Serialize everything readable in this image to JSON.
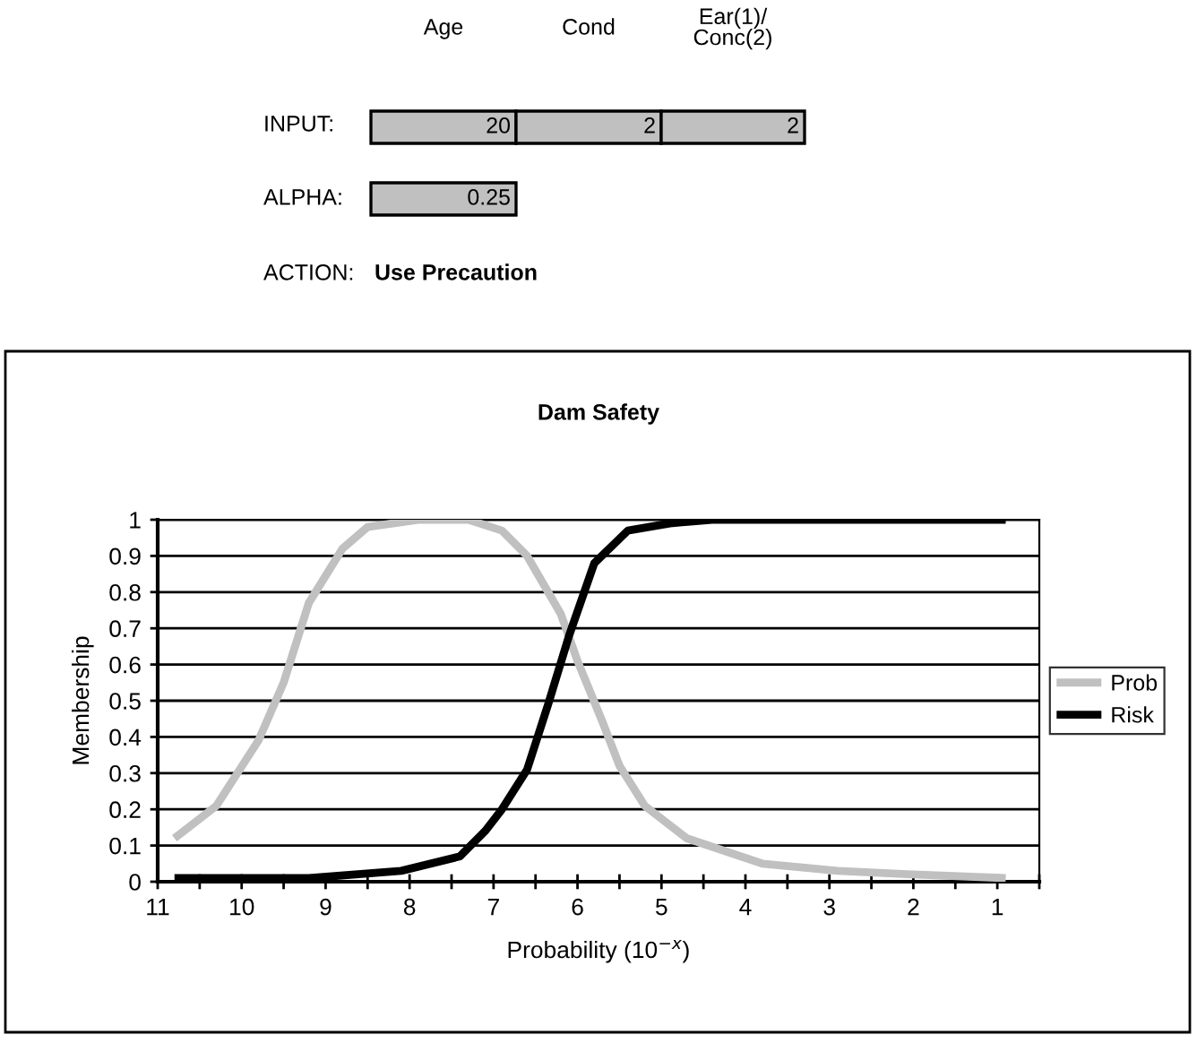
{
  "chart_data": [
    {
      "type": "other",
      "annotations": [
        "Age",
        "Cond",
        "Ear(1)/\nConc(2)",
        "INPUT:",
        "20",
        "2",
        "2",
        "ALPHA:",
        "0.25",
        "ACTION:",
        "Use Precaution"
      ]
    },
    {
      "type": "line",
      "title": "Dam Safety",
      "xlabel": "Probability (10$^{−x}$)",
      "ylabel": "Membership",
      "xlim": [
        11,
        0.5
      ],
      "xticks": [
        11,
        {
          "value": 10.5,
          "label": null
        },
        10,
        {
          "value": 9.5,
          "label": null
        },
        9,
        {
          "value": 8.5,
          "label": null
        },
        8,
        {
          "value": 7.5,
          "label": null
        },
        7,
        {
          "value": 6.5,
          "label": null
        },
        6,
        {
          "value": 5.5,
          "label": null
        },
        5,
        {
          "value": 4.5,
          "label": null
        },
        4,
        {
          "value": 3.5,
          "label": null
        },
        3,
        {
          "value": 2.5,
          "label": null
        },
        2,
        {
          "value": 1.5,
          "label": null
        },
        1,
        {
          "value": 0.5,
          "label": null
        }
      ],
      "ylim": [
        0,
        1
      ],
      "yticks": [
        0,
        0.1,
        0.2,
        0.3,
        0.4,
        0.5,
        0.6,
        0.7,
        0.8,
        0.9,
        1
      ],
      "grid": "y",
      "legend": "right",
      "marker": "none",
      "line_style": "solid",
      "series": [
        {
          "name": "Prob",
          "color": "#c0c0c0",
          "x": [
            10.8,
            10.3,
            9.8,
            9.5,
            9.2,
            8.8,
            8.5,
            7.9,
            7.3,
            6.9,
            6.6,
            6.2,
            6.0,
            5.7,
            5.5,
            5.2,
            4.7,
            3.8,
            2.9,
            2.0,
            0.9
          ],
          "values": [
            0.12,
            0.21,
            0.39,
            0.55,
            0.77,
            0.92,
            0.98,
            1.0,
            1.0,
            0.97,
            0.9,
            0.74,
            0.61,
            0.44,
            0.32,
            0.21,
            0.12,
            0.05,
            0.03,
            0.02,
            0.01
          ]
        },
        {
          "name": "Risk",
          "color": "#000000",
          "x": [
            10.8,
            9.2,
            8.1,
            7.4,
            7.1,
            6.9,
            6.6,
            6.35,
            6.1,
            5.8,
            5.4,
            4.9,
            4.4,
            0.9
          ],
          "values": [
            0.01,
            0.01,
            0.03,
            0.07,
            0.14,
            0.2,
            0.31,
            0.49,
            0.68,
            0.88,
            0.97,
            0.99,
            1.0,
            1.0
          ]
        }
      ]
    }
  ]
}
